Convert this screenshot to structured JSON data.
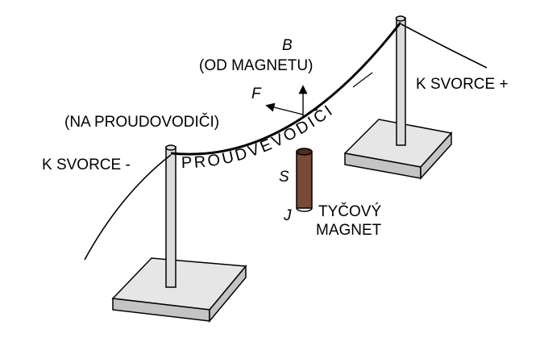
{
  "labels": {
    "b_symbol": "B",
    "b_source": "(OD MAGNETU)",
    "f_symbol": "F",
    "f_target": "(NA PROUDOVODIČI)",
    "terminal_minus": "K SVORCE -",
    "terminal_plus": "K SVORCE +",
    "conductor": "PROUDVEVODIČI",
    "pole_s": "S",
    "pole_j": "J",
    "magnet_line1": "TYČOVÝ",
    "magnet_line2": "MAGNET"
  },
  "colors": {
    "ink": "#000000",
    "stand_top": "#e6e6e6",
    "stand_side": "#c4c4c4",
    "pole": "#dcdcdc",
    "magnet": "#7a4a38",
    "magnet_dark": "#4e2c20"
  }
}
